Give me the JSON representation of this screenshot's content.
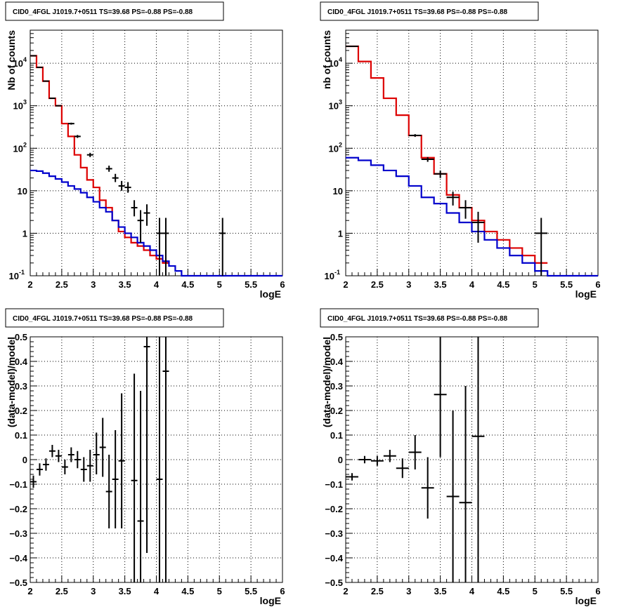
{
  "chart_data": [
    {
      "type": "line",
      "title": "CID0_4FGL J1019.7+0511 TS=39.68 PS=-0.88 PS=-0.88",
      "xlabel": "logE",
      "ylabel": "Nb of counts",
      "xlim": [
        2,
        6
      ],
      "ylim": [
        0.1,
        60000
      ],
      "yscale": "log",
      "grid": true,
      "x_ticks": [
        "2",
        "2.5",
        "3",
        "3.5",
        "4",
        "4.5",
        "5",
        "5.5",
        "6"
      ],
      "y_ticks": [
        {
          "value": 0.1,
          "label": "10",
          "exp": "-1"
        },
        {
          "value": 1,
          "label": "1",
          "exp": ""
        },
        {
          "value": 10,
          "label": "10",
          "exp": ""
        },
        {
          "value": 100,
          "label": "10",
          "exp": "2"
        },
        {
          "value": 1000,
          "label": "10",
          "exp": "3"
        },
        {
          "value": 10000,
          "label": "10",
          "exp": "4"
        }
      ],
      "bin_width": 0.1,
      "series": [
        {
          "color": "#dd0000",
          "kind": "step",
          "values": [
            15000,
            8000,
            3800,
            1500,
            1000,
            380,
            190,
            70,
            35,
            18,
            12,
            6,
            4,
            2,
            1.1,
            0.8,
            0.6,
            0.5,
            0.4,
            0.3,
            0.25,
            0.2
          ]
        },
        {
          "color": "#0000cc",
          "kind": "step",
          "values": [
            30,
            29,
            26,
            22,
            19,
            16,
            13,
            11,
            9,
            7,
            5.5,
            4,
            3.2,
            2,
            1.4,
            1,
            0.8,
            0.6,
            0.5,
            0.4,
            0.3,
            0.22,
            0.17,
            0.13,
            0.1,
            0.1,
            0.1,
            0.1,
            0.1,
            0.1,
            0.1,
            0.1,
            0.1,
            0.1,
            0.1,
            0.1,
            0.1,
            0.1,
            0.1,
            0.1
          ]
        },
        {
          "color": "#000000",
          "kind": "points",
          "points": [
            {
              "x": 2.05,
              "y": 15000,
              "lo": 14800,
              "hi": 15200
            },
            {
              "x": 2.15,
              "y": 8000,
              "lo": 7900,
              "hi": 8100
            },
            {
              "x": 2.25,
              "y": 3800,
              "lo": 3750,
              "hi": 3850
            },
            {
              "x": 2.35,
              "y": 1500,
              "lo": 1460,
              "hi": 1540
            },
            {
              "x": 2.45,
              "y": 1000,
              "lo": 970,
              "hi": 1030
            },
            {
              "x": 2.65,
              "y": 380,
              "lo": 360,
              "hi": 400
            },
            {
              "x": 2.75,
              "y": 190,
              "lo": 175,
              "hi": 205
            },
            {
              "x": 2.95,
              "y": 70,
              "lo": 62,
              "hi": 78
            },
            {
              "x": 3.25,
              "y": 33,
              "lo": 28,
              "hi": 39
            },
            {
              "x": 3.35,
              "y": 20,
              "lo": 16,
              "hi": 25
            },
            {
              "x": 3.45,
              "y": 13,
              "lo": 10,
              "hi": 17
            },
            {
              "x": 3.55,
              "y": 12,
              "lo": 9,
              "hi": 16
            },
            {
              "x": 3.65,
              "y": 4,
              "lo": 2.5,
              "hi": 6
            },
            {
              "x": 3.75,
              "y": 2,
              "lo": 0.6,
              "hi": 3.5
            },
            {
              "x": 3.85,
              "y": 3,
              "lo": 1.5,
              "hi": 4.8
            },
            {
              "x": 4.05,
              "y": 1,
              "lo": 0.1,
              "hi": 2.3
            },
            {
              "x": 4.15,
              "y": 1,
              "lo": 0.1,
              "hi": 2.3
            },
            {
              "x": 5.05,
              "y": 1,
              "lo": 0.1,
              "hi": 2.3
            }
          ]
        }
      ]
    },
    {
      "type": "line",
      "title": "CID0_4FGL J1019.7+0511 TS=39.68 PS=-0.88 PS=-0.88",
      "xlabel": "logE",
      "ylabel": "nb of counts",
      "xlim": [
        2,
        6
      ],
      "ylim": [
        0.1,
        60000
      ],
      "yscale": "log",
      "grid": true,
      "x_ticks": [
        "2",
        "2.5",
        "3",
        "3.5",
        "4",
        "4.5",
        "5",
        "5.5",
        "6"
      ],
      "y_ticks": [
        {
          "value": 0.1,
          "label": "10",
          "exp": "-1"
        },
        {
          "value": 1,
          "label": "1",
          "exp": ""
        },
        {
          "value": 10,
          "label": "10",
          "exp": ""
        },
        {
          "value": 100,
          "label": "10",
          "exp": "2"
        },
        {
          "value": 1000,
          "label": "10",
          "exp": "3"
        },
        {
          "value": 10000,
          "label": "10",
          "exp": "4"
        }
      ],
      "bin_width": 0.2,
      "series": [
        {
          "color": "#dd0000",
          "kind": "step",
          "values": [
            25000,
            11000,
            4500,
            1500,
            600,
            200,
            60,
            25,
            8,
            4,
            2,
            1.1,
            0.7,
            0.45,
            0.3,
            0.2
          ]
        },
        {
          "color": "#0000cc",
          "kind": "step",
          "values": [
            60,
            52,
            40,
            30,
            22,
            13,
            7,
            5,
            3,
            1.8,
            1.1,
            0.7,
            0.45,
            0.3,
            0.2,
            0.13,
            0.1,
            0.1,
            0.1,
            0.1
          ]
        },
        {
          "color": "#000000",
          "kind": "points",
          "points": [
            {
              "x": 2.1,
              "y": 25000,
              "lo": 24800,
              "hi": 25200
            },
            {
              "x": 3.1,
              "y": 200,
              "lo": 185,
              "hi": 215
            },
            {
              "x": 3.3,
              "y": 55,
              "lo": 48,
              "hi": 62
            },
            {
              "x": 3.5,
              "y": 25,
              "lo": 20,
              "hi": 30
            },
            {
              "x": 3.7,
              "y": 7,
              "lo": 4.5,
              "hi": 9.5
            },
            {
              "x": 3.9,
              "y": 4,
              "lo": 2.2,
              "hi": 6
            },
            {
              "x": 4.1,
              "y": 1.8,
              "lo": 0.6,
              "hi": 3.2
            },
            {
              "x": 5.1,
              "y": 1,
              "lo": 0.1,
              "hi": 2.3
            }
          ]
        }
      ]
    },
    {
      "type": "scatter",
      "title": "CID0_4FGL J1019.7+0511 TS=39.68 PS=-0.88 PS=-0.88",
      "xlabel": "logE",
      "ylabel": "(data-model)/model",
      "xlim": [
        2,
        6
      ],
      "ylim": [
        -0.5,
        0.5
      ],
      "yscale": "linear",
      "grid": true,
      "x_ticks": [
        "2",
        "2.5",
        "3",
        "3.5",
        "4",
        "4.5",
        "5",
        "5.5",
        "6"
      ],
      "y_ticks": [
        {
          "value": -0.5,
          "label": "−0.5"
        },
        {
          "value": -0.4,
          "label": "−0.4"
        },
        {
          "value": -0.3,
          "label": "−0.3"
        },
        {
          "value": -0.2,
          "label": "−0.2"
        },
        {
          "value": -0.1,
          "label": "−0.1"
        },
        {
          "value": 0,
          "label": "0"
        },
        {
          "value": 0.1,
          "label": "0.1"
        },
        {
          "value": 0.2,
          "label": "0.2"
        },
        {
          "value": 0.3,
          "label": "0.3"
        },
        {
          "value": 0.4,
          "label": "0.4"
        },
        {
          "value": 0.5,
          "label": "0.5"
        }
      ],
      "bin_width": 0.1,
      "series": [
        {
          "color": "#000000",
          "kind": "points",
          "points": [
            {
              "x": 2.05,
              "y": -0.09,
              "lo": -0.115,
              "hi": -0.065
            },
            {
              "x": 2.15,
              "y": -0.04,
              "lo": -0.065,
              "hi": -0.015
            },
            {
              "x": 2.25,
              "y": -0.02,
              "lo": -0.045,
              "hi": 0.005
            },
            {
              "x": 2.35,
              "y": 0.035,
              "lo": 0.01,
              "hi": 0.06
            },
            {
              "x": 2.45,
              "y": 0.015,
              "lo": -0.01,
              "hi": 0.04
            },
            {
              "x": 2.55,
              "y": -0.03,
              "lo": -0.06,
              "hi": 0.0
            },
            {
              "x": 2.65,
              "y": 0.02,
              "lo": -0.01,
              "hi": 0.05
            },
            {
              "x": 2.75,
              "y": 0.0,
              "lo": -0.035,
              "hi": 0.035
            },
            {
              "x": 2.85,
              "y": -0.04,
              "lo": -0.09,
              "hi": 0.01
            },
            {
              "x": 2.95,
              "y": -0.025,
              "lo": -0.09,
              "hi": 0.04
            },
            {
              "x": 3.05,
              "y": 0.02,
              "lo": -0.06,
              "hi": 0.11
            },
            {
              "x": 3.15,
              "y": 0.05,
              "lo": -0.07,
              "hi": 0.17
            },
            {
              "x": 3.25,
              "y": -0.13,
              "lo": -0.28,
              "hi": 0.02
            },
            {
              "x": 3.35,
              "y": -0.08,
              "lo": -0.28,
              "hi": 0.12
            },
            {
              "x": 3.45,
              "y": -0.005,
              "lo": -0.28,
              "hi": 0.27
            },
            {
              "x": 3.65,
              "y": -0.085,
              "lo": -0.5,
              "hi": 0.35
            },
            {
              "x": 3.75,
              "y": -0.25,
              "lo": -0.5,
              "hi": 0.28
            },
            {
              "x": 3.85,
              "y": 0.46,
              "lo": -0.38,
              "hi": 0.5
            },
            {
              "x": 4.05,
              "y": -0.08,
              "lo": -0.5,
              "hi": 0.5
            },
            {
              "x": 4.15,
              "y": 0.36,
              "lo": -0.5,
              "hi": 0.5
            }
          ]
        }
      ]
    },
    {
      "type": "scatter",
      "title": "CID0_4FGL J1019.7+0511 TS=39.68 PS=-0.88 PS=-0.88",
      "xlabel": "logE",
      "ylabel": "(data-model)/model",
      "xlim": [
        2,
        6
      ],
      "ylim": [
        -0.5,
        0.5
      ],
      "yscale": "linear",
      "grid": true,
      "x_ticks": [
        "2",
        "2.5",
        "3",
        "3.5",
        "4",
        "4.5",
        "5",
        "5.5",
        "6"
      ],
      "y_ticks": [
        {
          "value": -0.5,
          "label": "−0.5"
        },
        {
          "value": -0.4,
          "label": "−0.4"
        },
        {
          "value": -0.3,
          "label": "−0.3"
        },
        {
          "value": -0.2,
          "label": "−0.2"
        },
        {
          "value": -0.1,
          "label": "−0.1"
        },
        {
          "value": 0,
          "label": "0"
        },
        {
          "value": 0.1,
          "label": "0.1"
        },
        {
          "value": 0.2,
          "label": "0.2"
        },
        {
          "value": 0.3,
          "label": "0.3"
        },
        {
          "value": 0.4,
          "label": "0.4"
        },
        {
          "value": 0.5,
          "label": "0.5"
        }
      ],
      "bin_width": 0.2,
      "series": [
        {
          "color": "#000000",
          "kind": "points",
          "points": [
            {
              "x": 2.1,
              "y": -0.07,
              "lo": -0.085,
              "hi": -0.055
            },
            {
              "x": 2.3,
              "y": 0.0,
              "lo": -0.015,
              "hi": 0.015
            },
            {
              "x": 2.5,
              "y": -0.005,
              "lo": -0.025,
              "hi": 0.015
            },
            {
              "x": 2.7,
              "y": 0.015,
              "lo": -0.01,
              "hi": 0.04
            },
            {
              "x": 2.9,
              "y": -0.035,
              "lo": -0.075,
              "hi": 0.005
            },
            {
              "x": 3.1,
              "y": 0.03,
              "lo": -0.04,
              "hi": 0.1
            },
            {
              "x": 3.3,
              "y": -0.115,
              "lo": -0.24,
              "hi": 0.01
            },
            {
              "x": 3.5,
              "y": 0.265,
              "lo": 0.01,
              "hi": 0.5
            },
            {
              "x": 3.7,
              "y": -0.15,
              "lo": -0.5,
              "hi": 0.2
            },
            {
              "x": 3.9,
              "y": -0.175,
              "lo": -0.5,
              "hi": 0.3
            },
            {
              "x": 4.1,
              "y": 0.095,
              "lo": -0.5,
              "hi": 0.5
            }
          ]
        }
      ]
    }
  ]
}
